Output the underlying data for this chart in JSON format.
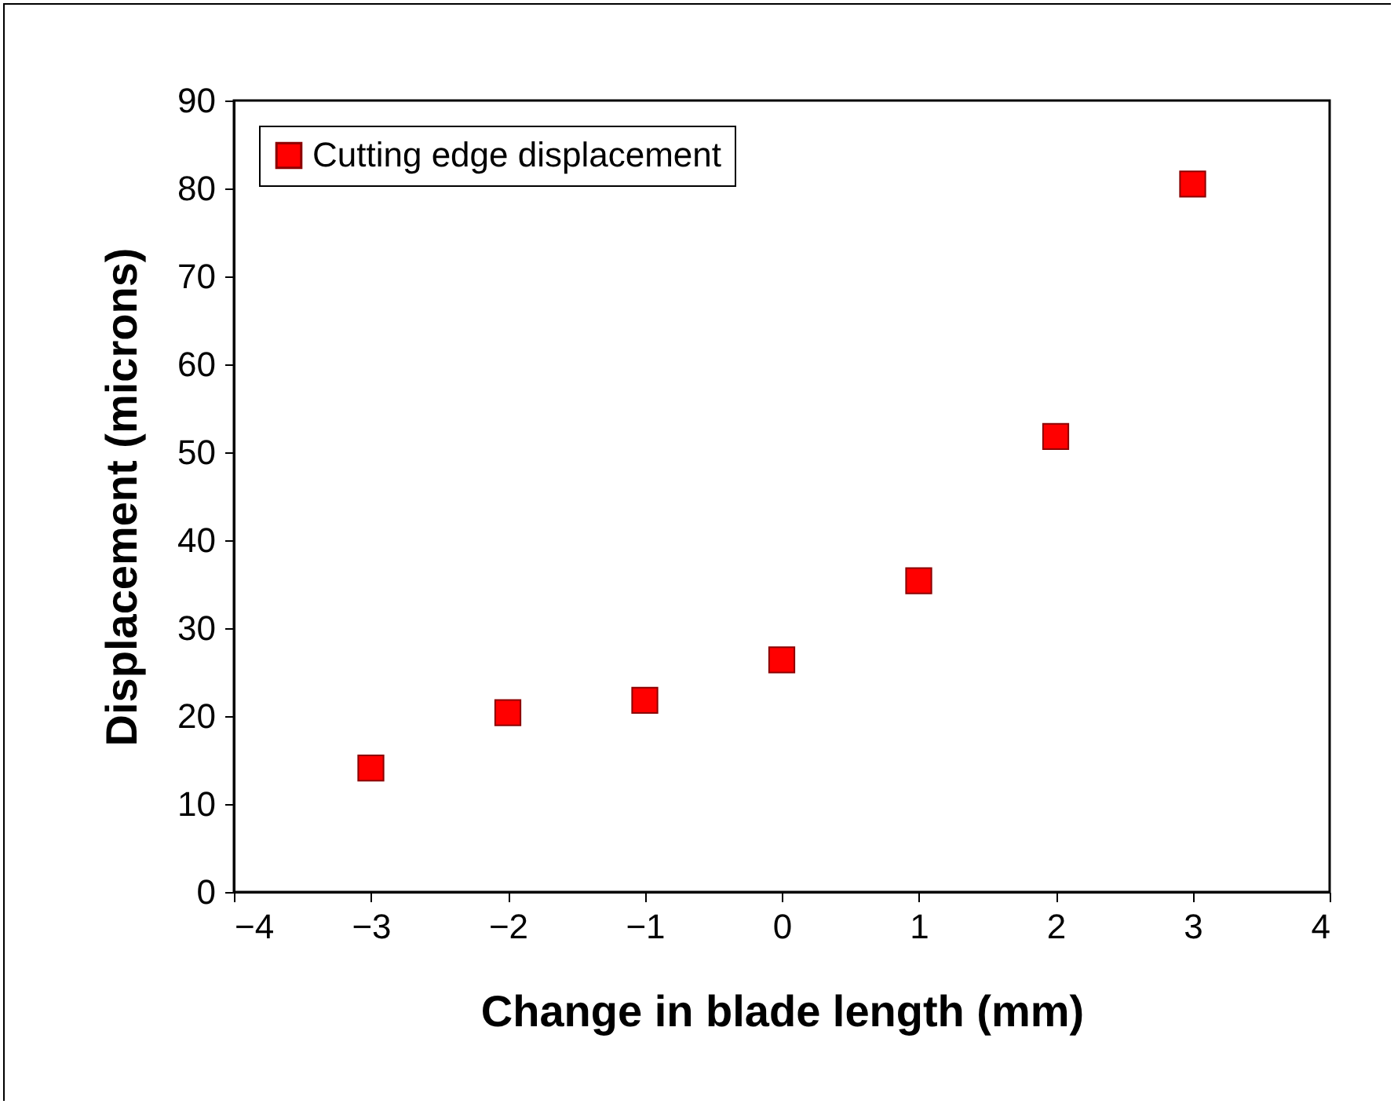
{
  "chart_data": {
    "type": "scatter",
    "xlabel": "Change in blade length (mm)",
    "ylabel": "Displacement (microns)",
    "x": [
      -3,
      -2,
      -1,
      0,
      1,
      2,
      3
    ],
    "series": [
      {
        "name": "Cutting edge displacement",
        "color": "#ff0000",
        "values": [
          14.1,
          20.4,
          21.8,
          26.4,
          35.4,
          51.8,
          80.5
        ]
      }
    ],
    "xlim": [
      -4,
      4
    ],
    "xticks": [
      -4,
      -3,
      -2,
      -1,
      0,
      1,
      2,
      3,
      4
    ],
    "ylim": [
      0,
      90
    ],
    "yticks": [
      0,
      10,
      20,
      30,
      40,
      50,
      60,
      70,
      80,
      90
    ],
    "marker": "square",
    "legend": "top left"
  }
}
